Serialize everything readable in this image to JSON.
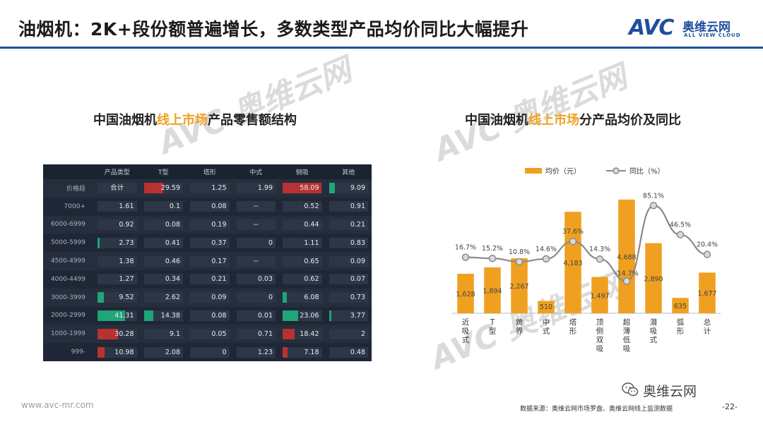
{
  "slide": {
    "title": "油烟机：2K+段份额普遍增长，多数类型产品均价同比大幅提升",
    "footer_url": "www.avc-mr.com",
    "source": "数据来源：奥维云网市场罗盘、奥维云网线上监测数据",
    "page_number": "-22-",
    "wechat_name": "奥维云网"
  },
  "logo": {
    "mark": "AVC",
    "cn": "奥维云网",
    "en": "ALL VIEW CLOUD",
    "color": "#1f4f9c"
  },
  "watermark": {
    "text": "AVC 奥维云网"
  },
  "left_panel": {
    "title_prefix": "中国油烟机",
    "title_highlight": "线上市场",
    "title_suffix": "产品零售额结构"
  },
  "right_panel": {
    "title_prefix": "中国油烟机",
    "title_highlight": "线上市场",
    "title_suffix": "分产品均价及同比"
  },
  "colors": {
    "accent": "#f0a020",
    "brand": "#1f4f9c",
    "bar_red": "#b83232",
    "bar_green": "#1fa577",
    "line": "#8a8a8a"
  },
  "chart_data": [
    {
      "type": "table",
      "columns": [
        "",
        "产品类型",
        "T型",
        "塔形",
        "中式",
        "侧吸",
        "其他"
      ],
      "rows": [
        {
          "label": "价格段",
          "values": [
            "合计",
            "29.59",
            "1.25",
            "1.99",
            "58.09",
            "9.09"
          ],
          "marks": [
            "",
            "red",
            "",
            "",
            "red",
            "green"
          ]
        },
        {
          "label": "7000+",
          "values": [
            "1.61",
            "0.1",
            "0.08",
            "--",
            "0.52",
            "0.91"
          ],
          "marks": [
            "",
            "",
            "",
            "",
            "",
            ""
          ]
        },
        {
          "label": "6000-6999",
          "values": [
            "0.92",
            "0.08",
            "0.19",
            "--",
            "0.44",
            "0.21"
          ],
          "marks": [
            "",
            "",
            "",
            "",
            "",
            ""
          ]
        },
        {
          "label": "5000-5999",
          "values": [
            "2.73",
            "0.41",
            "0.37",
            "0",
            "1.11",
            "0.83"
          ],
          "marks": [
            "green",
            "",
            "",
            "",
            "",
            ""
          ]
        },
        {
          "label": "4500-4999",
          "values": [
            "1.38",
            "0.46",
            "0.17",
            "--",
            "0.65",
            "0.09"
          ],
          "marks": [
            "",
            "",
            "",
            "",
            "",
            ""
          ]
        },
        {
          "label": "4000-4499",
          "values": [
            "1.27",
            "0.34",
            "0.21",
            "0.03",
            "0.62",
            "0.07"
          ],
          "marks": [
            "",
            "",
            "",
            "",
            "",
            ""
          ]
        },
        {
          "label": "3000-3999",
          "values": [
            "9.52",
            "2.62",
            "0.09",
            "0",
            "6.08",
            "0.73"
          ],
          "marks": [
            "green",
            "",
            "",
            "",
            "green",
            ""
          ]
        },
        {
          "label": "2000-2999",
          "values": [
            "41.31",
            "14.38",
            "0.08",
            "0.01",
            "23.06",
            "3.77"
          ],
          "marks": [
            "green",
            "green",
            "",
            "",
            "green",
            "green"
          ]
        },
        {
          "label": "1000-1999",
          "values": [
            "30.28",
            "9.1",
            "0.05",
            "0.71",
            "18.42",
            "2"
          ],
          "marks": [
            "red",
            "",
            "",
            "",
            "red",
            ""
          ]
        },
        {
          "label": "999-",
          "values": [
            "10.98",
            "2.08",
            "0",
            "1.23",
            "7.18",
            "0.48"
          ],
          "marks": [
            "red",
            "",
            "",
            "",
            "red",
            ""
          ]
        }
      ]
    },
    {
      "type": "bar",
      "categories": [
        "近吸式",
        "T型",
        "跨界",
        "中式",
        "塔形",
        "顶侧双吸",
        "超薄低吸",
        "潜吸式",
        "弧形",
        "总计"
      ],
      "series": [
        {
          "name": "均价（元）",
          "kind": "bar",
          "values": [
            1628,
            1894,
            2267,
            510,
            4183,
            1497,
            4688,
            2890,
            635,
            1677
          ],
          "labels": [
            "1,628",
            "1,894",
            "2,267",
            "510",
            "4,183",
            "1,497",
            "4,688",
            "2,890",
            "635",
            "1,677"
          ]
        },
        {
          "name": "同比（%）",
          "kind": "line",
          "values": [
            16.7,
            15.2,
            10.8,
            14.6,
            37.6,
            14.3,
            -14.7,
            85.1,
            46.5,
            20.4
          ],
          "labels": [
            "16.7%",
            "15.2%",
            "10.8%",
            "14.6%",
            "37.6%",
            "14.3%",
            "-14.7%",
            "85.1%",
            "46.5%",
            "20.4%"
          ]
        }
      ],
      "legend_position": "top",
      "grid": false
    }
  ]
}
